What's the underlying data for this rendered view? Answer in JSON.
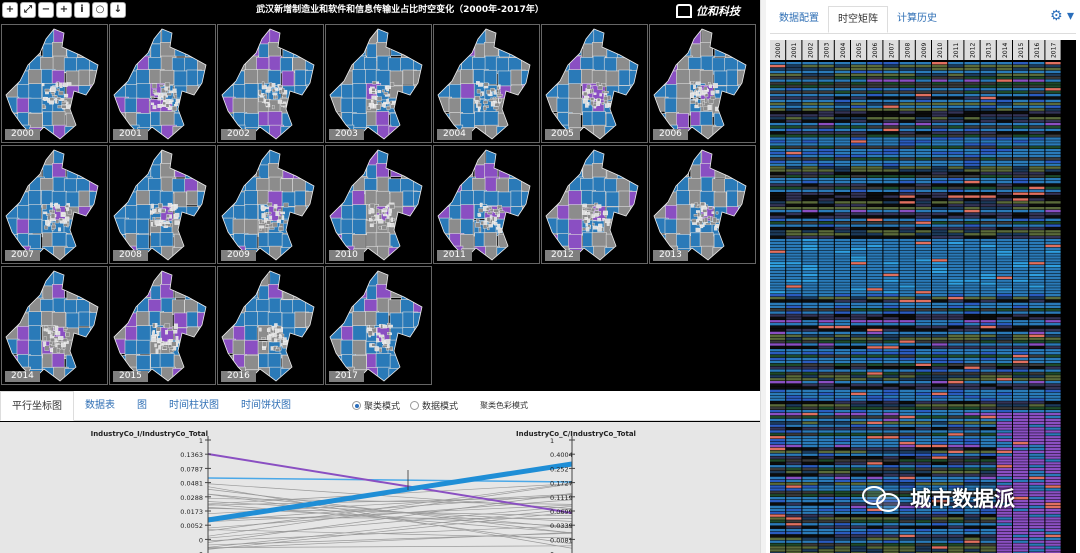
{
  "toolbar": {
    "buttons": [
      {
        "glyph": "+",
        "name": "zoom-in-icon"
      },
      {
        "glyph": "⤢",
        "name": "fit-extent-icon"
      },
      {
        "glyph": "−",
        "name": "minus-icon"
      },
      {
        "glyph": "+",
        "name": "plus-icon"
      },
      {
        "glyph": "i",
        "name": "info-icon"
      },
      {
        "glyph": "○",
        "name": "circle-icon"
      },
      {
        "glyph": "↓",
        "name": "download-icon"
      }
    ]
  },
  "map": {
    "title": "武汉新增制造业和软件和信息传输业占比时空变化（2000年-2017年）",
    "years": [
      "2000",
      "2001",
      "2002",
      "2003",
      "2004",
      "2005",
      "2006",
      "2007",
      "2008",
      "2009",
      "2010",
      "2011",
      "2012",
      "2013",
      "2014",
      "2015",
      "2016",
      "2017"
    ]
  },
  "logo": {
    "text": "位和科技"
  },
  "bottom_tabs": {
    "items": [
      "平行坐标图",
      "数据表",
      "图",
      "时间柱状图",
      "时间饼状图"
    ],
    "active": 0
  },
  "modes": {
    "cluster": "聚类模式",
    "data": "数据模式",
    "color": "聚类色彩模式"
  },
  "parallel": {
    "left_axis": {
      "label": "IndustryCo_I/IndustryCo_Total",
      "ticks": [
        "1",
        "0.1363",
        "0.0787",
        "0.0481",
        "0.0288",
        "0.0173",
        "0.0052",
        "0",
        "0"
      ]
    },
    "right_axis": {
      "label": "IndustryCo_C/IndustryCo_Total",
      "ticks": [
        "1",
        "0.4004",
        "0.252",
        "0.1727",
        "0.1119",
        "0.0699",
        "0.0339",
        "0.0081",
        "0"
      ]
    }
  },
  "right_panel": {
    "tabs": [
      "数据配置",
      "时空矩阵",
      "计算历史"
    ],
    "active": 1,
    "gear": "⚙ ▾"
  },
  "matrix": {
    "years": [
      "2000",
      "2001",
      "2002",
      "2003",
      "2004",
      "2005",
      "2006",
      "2007",
      "2008",
      "2009",
      "2010",
      "2011",
      "2012",
      "2013",
      "2014",
      "2015",
      "2016",
      "2017"
    ]
  },
  "watermark": {
    "text": "城市数据派"
  },
  "colors": {
    "blue": "#2a7ab8",
    "gray": "#8c8c8c",
    "purple": "#8a4fc2",
    "light_blue": "#4aa8e8",
    "dark_green": "#1e4a2a"
  }
}
